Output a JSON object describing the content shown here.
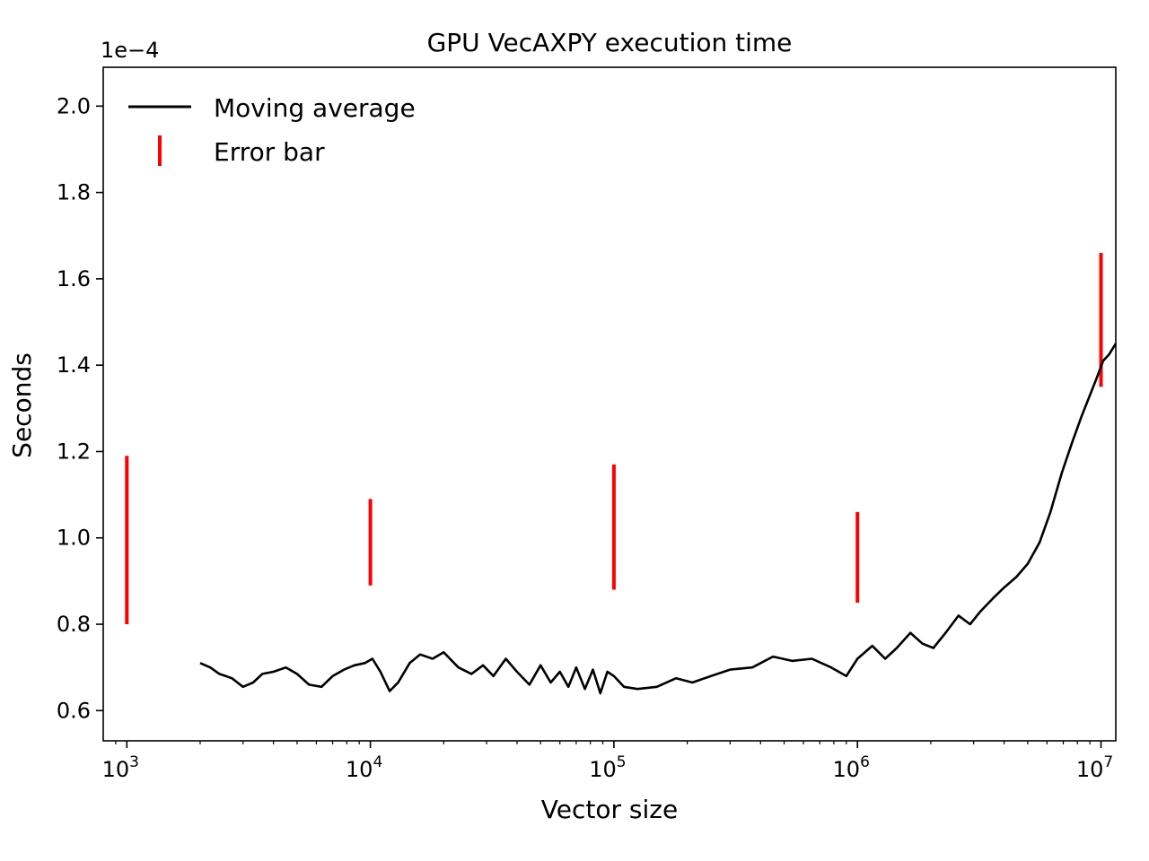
{
  "chart_data": {
    "type": "line",
    "title": "GPU VecAXPY execution time",
    "xlabel": "Vector size",
    "ylabel": "Seconds",
    "y_multiplier_label": "1e−4",
    "x_scale": "log",
    "xlim": [
      800,
      11500000
    ],
    "ylim": [
      0.53,
      2.09
    ],
    "x_ticks": [
      {
        "value": 1000,
        "base": "10",
        "exp": "3"
      },
      {
        "value": 10000,
        "base": "10",
        "exp": "4"
      },
      {
        "value": 100000,
        "base": "10",
        "exp": "5"
      },
      {
        "value": 1000000,
        "base": "10",
        "exp": "6"
      },
      {
        "value": 10000000,
        "base": "10",
        "exp": "7"
      }
    ],
    "y_ticks": [
      {
        "value": 0.6,
        "label": "0.6"
      },
      {
        "value": 0.8,
        "label": "0.8"
      },
      {
        "value": 1.0,
        "label": "1.0"
      },
      {
        "value": 1.2,
        "label": "1.2"
      },
      {
        "value": 1.4,
        "label": "1.4"
      },
      {
        "value": 1.6,
        "label": "1.6"
      },
      {
        "value": 1.8,
        "label": "1.8"
      },
      {
        "value": 2.0,
        "label": "2.0"
      }
    ],
    "grid": false,
    "legend_position": "top-left",
    "series": [
      {
        "name": "Moving average",
        "color": "#000000",
        "points": [
          [
            2000,
            0.71
          ],
          [
            2200,
            0.7
          ],
          [
            2400,
            0.685
          ],
          [
            2700,
            0.675
          ],
          [
            3000,
            0.655
          ],
          [
            3300,
            0.665
          ],
          [
            3600,
            0.685
          ],
          [
            4000,
            0.69
          ],
          [
            4500,
            0.7
          ],
          [
            5000,
            0.685
          ],
          [
            5600,
            0.66
          ],
          [
            6300,
            0.655
          ],
          [
            7000,
            0.68
          ],
          [
            7800,
            0.695
          ],
          [
            8600,
            0.705
          ],
          [
            9500,
            0.71
          ],
          [
            10200,
            0.72
          ],
          [
            11000,
            0.69
          ],
          [
            12000,
            0.645
          ],
          [
            13000,
            0.665
          ],
          [
            14500,
            0.71
          ],
          [
            16000,
            0.73
          ],
          [
            18000,
            0.72
          ],
          [
            20000,
            0.735
          ],
          [
            23000,
            0.7
          ],
          [
            26000,
            0.685
          ],
          [
            29000,
            0.705
          ],
          [
            32000,
            0.68
          ],
          [
            36000,
            0.72
          ],
          [
            40000,
            0.69
          ],
          [
            45000,
            0.66
          ],
          [
            50000,
            0.705
          ],
          [
            55000,
            0.665
          ],
          [
            60000,
            0.69
          ],
          [
            65000,
            0.655
          ],
          [
            70000,
            0.7
          ],
          [
            76000,
            0.65
          ],
          [
            82000,
            0.695
          ],
          [
            88000,
            0.64
          ],
          [
            94000,
            0.69
          ],
          [
            100000,
            0.68
          ],
          [
            110000,
            0.655
          ],
          [
            125000,
            0.65
          ],
          [
            150000,
            0.655
          ],
          [
            180000,
            0.675
          ],
          [
            210000,
            0.665
          ],
          [
            250000,
            0.68
          ],
          [
            300000,
            0.695
          ],
          [
            370000,
            0.7
          ],
          [
            450000,
            0.725
          ],
          [
            540000,
            0.715
          ],
          [
            650000,
            0.72
          ],
          [
            780000,
            0.7
          ],
          [
            900000,
            0.68
          ],
          [
            1000000,
            0.72
          ],
          [
            1150000,
            0.75
          ],
          [
            1300000,
            0.72
          ],
          [
            1450000,
            0.745
          ],
          [
            1650000,
            0.78
          ],
          [
            1850000,
            0.755
          ],
          [
            2050000,
            0.745
          ],
          [
            2300000,
            0.78
          ],
          [
            2600000,
            0.82
          ],
          [
            2900000,
            0.8
          ],
          [
            3200000,
            0.83
          ],
          [
            3600000,
            0.86
          ],
          [
            4000000,
            0.885
          ],
          [
            4500000,
            0.91
          ],
          [
            5000000,
            0.94
          ],
          [
            5600000,
            0.99
          ],
          [
            6200000,
            1.06
          ],
          [
            6900000,
            1.15
          ],
          [
            7600000,
            1.22
          ],
          [
            8300000,
            1.28
          ],
          [
            9000000,
            1.33
          ],
          [
            9600000,
            1.37
          ],
          [
            10200000,
            1.41
          ],
          [
            10800000,
            1.425
          ],
          [
            11500000,
            1.45
          ]
        ]
      },
      {
        "name": "Error bar",
        "color": "#ff0000",
        "bars": [
          {
            "x": 1000,
            "low": 0.8,
            "high": 1.19
          },
          {
            "x": 10000,
            "low": 0.89,
            "high": 1.09
          },
          {
            "x": 100000,
            "low": 0.88,
            "high": 1.17
          },
          {
            "x": 1000000,
            "low": 0.85,
            "high": 1.06
          },
          {
            "x": 10000000,
            "low": 1.35,
            "high": 1.66
          }
        ]
      }
    ]
  }
}
